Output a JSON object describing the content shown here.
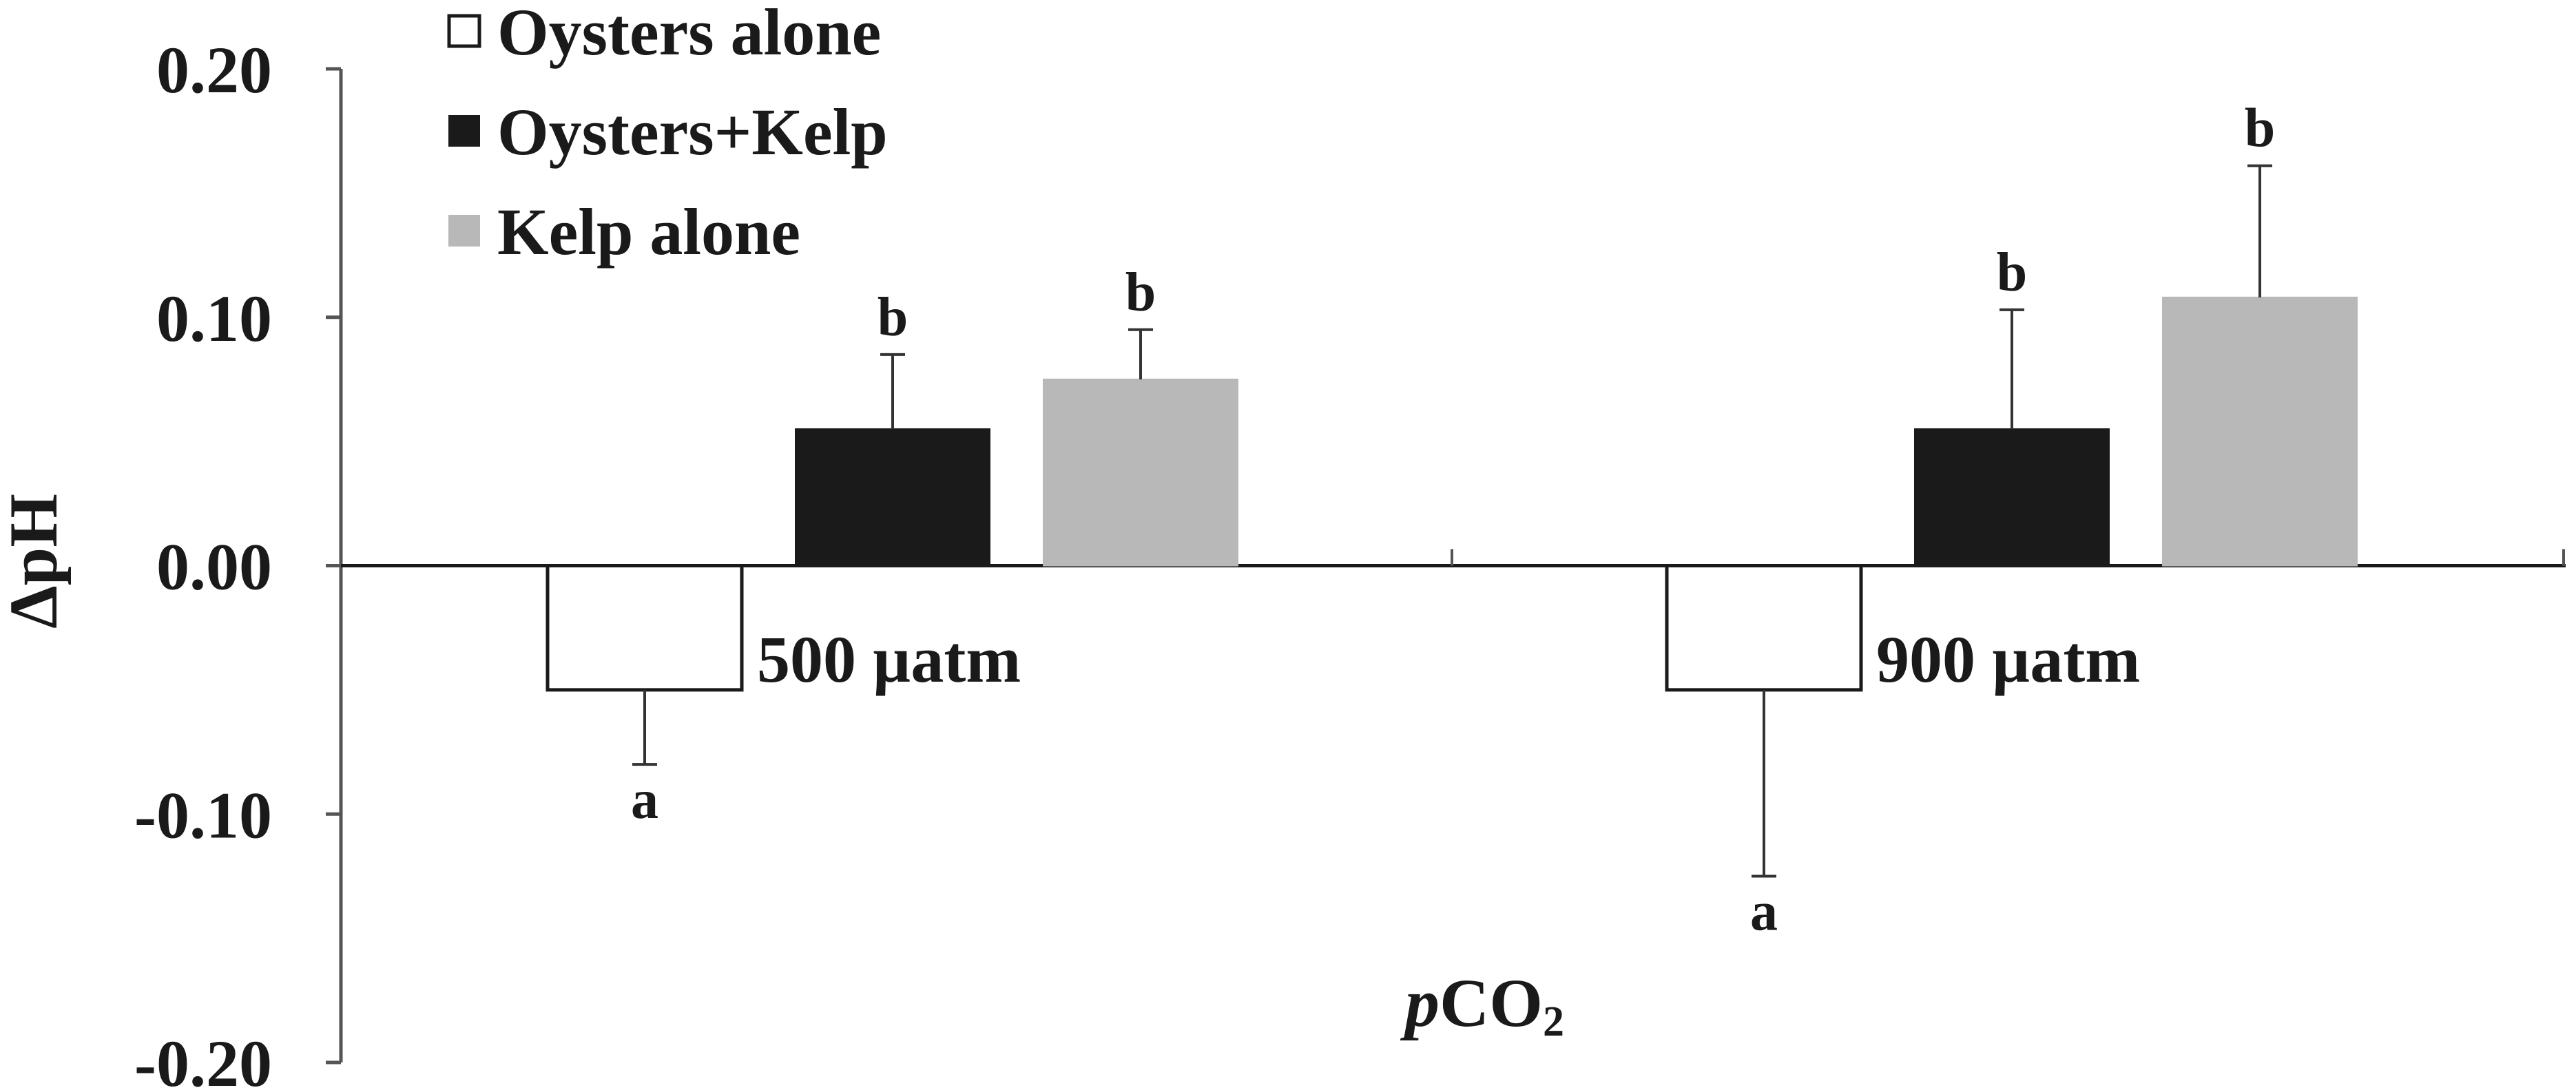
{
  "chart_data": {
    "type": "bar",
    "title": "",
    "xlabel": "pCO",
    "xlabel_parts": {
      "italic": "p",
      "main": "CO",
      "subscript": "2"
    },
    "ylabel": "ΔpH",
    "ylim": [
      -0.2,
      0.2
    ],
    "yticks": [
      "0.20",
      "0.10",
      "0.00",
      "-0.10",
      "-0.20"
    ],
    "ytick_values": [
      0.2,
      0.1,
      0.0,
      -0.1,
      -0.2
    ],
    "categories": [
      "500 µatm",
      "900 µatm"
    ],
    "legend_position": "top-left",
    "series": [
      {
        "name": "Oysters alone",
        "color": "#ffffff",
        "values": [
          -0.05,
          -0.05
        ],
        "errors": [
          0.03,
          0.075
        ],
        "letters": [
          "a",
          "a"
        ]
      },
      {
        "name": "Oysters+Kelp",
        "color": "#1a1a1a",
        "values": [
          0.055,
          0.055
        ],
        "errors": [
          0.03,
          0.048
        ],
        "letters": [
          "b",
          "b"
        ]
      },
      {
        "name": "Kelp alone",
        "color": "#b8b8b8",
        "values": [
          0.075,
          0.108
        ],
        "errors": [
          0.02,
          0.053
        ],
        "letters": [
          "b",
          "b"
        ]
      }
    ]
  }
}
